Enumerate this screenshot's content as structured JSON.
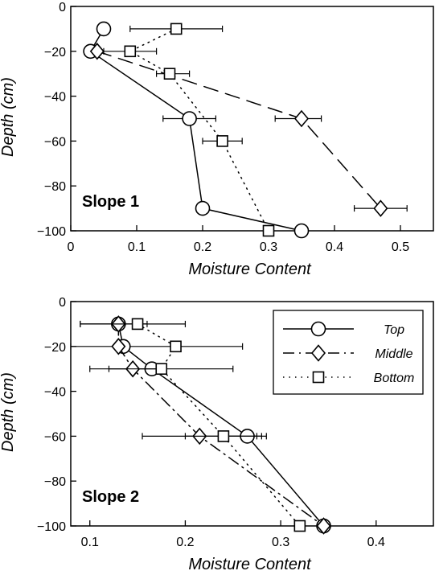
{
  "chart_data": [
    {
      "type": "line",
      "label": "Slope 1",
      "xlabel": "Moisture Content",
      "ylabel": "Depth (cm)",
      "xlim": [
        0,
        0.55
      ],
      "ylim": [
        -100,
        0
      ],
      "x_ticks": [
        0,
        0.1,
        0.2,
        0.3,
        0.4,
        0.5
      ],
      "x_tick_labels": [
        "0",
        "0.1",
        "0.2",
        "0.3",
        "0.4",
        "0.5"
      ],
      "y_ticks": [
        0,
        -20,
        -40,
        -60,
        -80,
        -100
      ],
      "y_tick_labels": [
        "0",
        "−20",
        "−40",
        "−60",
        "−80",
        "−100"
      ],
      "grid": false,
      "series": [
        {
          "key": "top",
          "style": "solid",
          "marker": "circle",
          "points": [
            {
              "y": -10,
              "x": 0.05
            },
            {
              "y": -20,
              "x": 0.03
            },
            {
              "y": -50,
              "x": 0.18,
              "xerr": [
                0.14,
                0.22
              ]
            },
            {
              "y": -90,
              "x": 0.2
            },
            {
              "y": -100,
              "x": 0.35
            }
          ]
        },
        {
          "key": "middle",
          "style": "dashed",
          "marker": "diamond",
          "points": [
            {
              "y": -20,
              "x": 0.04
            },
            {
              "y": -50,
              "x": 0.35,
              "xerr": [
                0.31,
                0.38
              ]
            },
            {
              "y": -90,
              "x": 0.47,
              "xerr": [
                0.43,
                0.51
              ]
            }
          ]
        },
        {
          "key": "bottom",
          "style": "dotted",
          "marker": "square",
          "points": [
            {
              "y": -10,
              "x": 0.16,
              "xerr": [
                0.09,
                0.23
              ]
            },
            {
              "y": -20,
              "x": 0.09,
              "xerr": [
                0.05,
                0.13
              ]
            },
            {
              "y": -30,
              "x": 0.15,
              "xerr": [
                0.13,
                0.18
              ]
            },
            {
              "y": -60,
              "x": 0.23,
              "xerr": [
                0.2,
                0.26
              ]
            },
            {
              "y": -100,
              "x": 0.3
            }
          ]
        }
      ]
    },
    {
      "type": "line",
      "label": "Slope 2",
      "xlabel": "Moisture Content",
      "ylabel": "Depth (cm)",
      "xlim": [
        0.08,
        0.46
      ],
      "ylim": [
        -100,
        0
      ],
      "x_ticks": [
        0.1,
        0.2,
        0.3,
        0.4
      ],
      "x_tick_labels": [
        "0.1",
        "0.2",
        "0.3",
        "0.4"
      ],
      "y_ticks": [
        0,
        -20,
        -40,
        -60,
        -80,
        -100
      ],
      "y_tick_labels": [
        "0",
        "−20",
        "−40",
        "−60",
        "−80",
        "−100"
      ],
      "grid": false,
      "legend": {
        "position": "top-right",
        "entries": [
          {
            "key": "top",
            "label": "Top"
          },
          {
            "key": "middle",
            "label": "Middle"
          },
          {
            "key": "bottom",
            "label": "Bottom"
          }
        ]
      },
      "series": [
        {
          "key": "top",
          "style": "solid",
          "marker": "circle",
          "points": [
            {
              "y": -10,
              "x": 0.13
            },
            {
              "y": -20,
              "x": 0.135,
              "xerr": [
                0.08,
                0.26
              ]
            },
            {
              "y": -30,
              "x": 0.165
            },
            {
              "y": -60,
              "x": 0.265,
              "xerr": [
                0.245,
                0.285
              ]
            },
            {
              "y": -100,
              "x": 0.345
            }
          ]
        },
        {
          "key": "middle",
          "style": "dashdot",
          "marker": "diamond",
          "points": [
            {
              "y": -10,
              "x": 0.13,
              "xerr": [
                0.09,
                0.16
              ]
            },
            {
              "y": -20,
              "x": 0.13
            },
            {
              "y": -30,
              "x": 0.145,
              "xerr": [
                0.12,
                0.17
              ]
            },
            {
              "y": -60,
              "x": 0.215,
              "xerr": [
                0.155,
                0.275
              ]
            },
            {
              "y": -100,
              "x": 0.345
            }
          ]
        },
        {
          "key": "bottom",
          "style": "dotted",
          "marker": "square",
          "points": [
            {
              "y": -10,
              "x": 0.15,
              "xerr": [
                0.09,
                0.2
              ]
            },
            {
              "y": -20,
              "x": 0.19
            },
            {
              "y": -30,
              "x": 0.175,
              "xerr": [
                0.1,
                0.25
              ]
            },
            {
              "y": -60,
              "x": 0.24,
              "xerr": [
                0.2,
                0.28
              ]
            },
            {
              "y": -100,
              "x": 0.32
            }
          ]
        }
      ]
    }
  ]
}
